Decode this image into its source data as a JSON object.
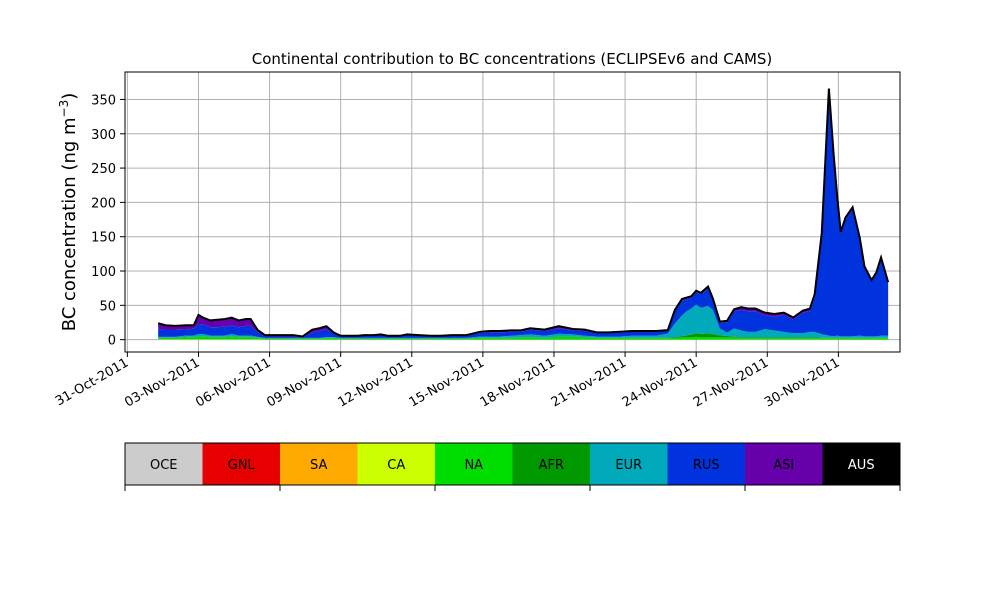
{
  "chart_data": {
    "type": "area",
    "title": "Continental contribution to BC concentrations (ECLIPSEv6 and CAMS)",
    "ylabel": "BC concentration (ng m",
    "ylabel_superscript": "−3",
    "ylabel_close": ")",
    "xlabel": "",
    "ylim": [
      -18,
      390
    ],
    "yticks": [
      0,
      50,
      100,
      150,
      200,
      250,
      300,
      350
    ],
    "xlim_days": [
      -0.1,
      32.6
    ],
    "xticks": [
      {
        "day": 0,
        "label": "31-Oct-2011"
      },
      {
        "day": 3,
        "label": "03-Nov-2011"
      },
      {
        "day": 6,
        "label": "06-Nov-2011"
      },
      {
        "day": 9,
        "label": "09-Nov-2011"
      },
      {
        "day": 12,
        "label": "12-Nov-2011"
      },
      {
        "day": 15,
        "label": "15-Nov-2011"
      },
      {
        "day": 18,
        "label": "18-Nov-2011"
      },
      {
        "day": 21,
        "label": "21-Nov-2011"
      },
      {
        "day": 24,
        "label": "24-Nov-2011"
      },
      {
        "day": 27,
        "label": "27-Nov-2011"
      },
      {
        "day": 30,
        "label": "30-Nov-2011"
      }
    ],
    "grid": true,
    "x_days": [
      1.3,
      1.6,
      2.0,
      2.5,
      2.8,
      3.0,
      3.2,
      3.5,
      3.8,
      4.1,
      4.4,
      4.7,
      5.0,
      5.2,
      5.5,
      5.8,
      6.2,
      6.6,
      7.0,
      7.4,
      7.8,
      8.1,
      8.4,
      8.7,
      9.0,
      9.4,
      9.7,
      10.0,
      10.4,
      10.7,
      11.0,
      11.5,
      11.8,
      12.3,
      12.8,
      13.2,
      13.7,
      14.3,
      14.9,
      15.3,
      15.7,
      16.2,
      16.6,
      17.0,
      17.6,
      18.2,
      18.8,
      19.3,
      19.8,
      20.3,
      20.8,
      21.3,
      21.8,
      22.3,
      22.8,
      23.1,
      23.4,
      23.6,
      23.8,
      24.0,
      24.2,
      24.5,
      24.7,
      25.0,
      25.3,
      25.6,
      25.9,
      26.2,
      26.5,
      26.9,
      27.3,
      27.7,
      28.1,
      28.5,
      28.8,
      29.0,
      29.3,
      29.6,
      29.8,
      29.95,
      30.1,
      30.3,
      30.6,
      30.9,
      31.1,
      31.4,
      31.6,
      31.8,
      32.1
    ],
    "series": [
      {
        "name": "OCE",
        "color": "#cccccc",
        "values": [
          0,
          0,
          0,
          0,
          0,
          0,
          0,
          0,
          0,
          0,
          0,
          0,
          0,
          0,
          0,
          0,
          0,
          0,
          0,
          0,
          0,
          0,
          0,
          0,
          0,
          0,
          0,
          0,
          0,
          0,
          0,
          0,
          0,
          0,
          0,
          0,
          0,
          0,
          0,
          0,
          0,
          0,
          0,
          0,
          0,
          0,
          0,
          0,
          0,
          0,
          0,
          0,
          0,
          0,
          0,
          0,
          0,
          0,
          0,
          0,
          0,
          0,
          0,
          0,
          0,
          0,
          0,
          0,
          0,
          0,
          0,
          0,
          0,
          0,
          0,
          0,
          0,
          0,
          0,
          0,
          0,
          0,
          0,
          0,
          0,
          0,
          0,
          0,
          0
        ]
      },
      {
        "name": "GNL",
        "color": "#e60000",
        "values": [
          0,
          0,
          0,
          0,
          0,
          0,
          0,
          0,
          0,
          0,
          0,
          0,
          0,
          0,
          0,
          0,
          0,
          0,
          0,
          0,
          0,
          0,
          0,
          0,
          0,
          0,
          0,
          0,
          0,
          0,
          0,
          0,
          0,
          0,
          0,
          0,
          0,
          0,
          0,
          0,
          0,
          0,
          0,
          0,
          0,
          0,
          0,
          0,
          0,
          0,
          0,
          0,
          0,
          0,
          0,
          0,
          0,
          0,
          0,
          0,
          0,
          0,
          0,
          0,
          0,
          0,
          0,
          0,
          0,
          0,
          0,
          0,
          0,
          0,
          0,
          0,
          0,
          0,
          0,
          0,
          0,
          0,
          0,
          0,
          0,
          0,
          0,
          0,
          0
        ]
      },
      {
        "name": "SA",
        "color": "#ffaa00",
        "values": [
          0,
          0,
          0,
          0,
          0,
          0,
          0,
          0,
          0,
          0,
          0,
          0,
          0,
          0,
          0,
          0,
          0,
          0,
          0,
          0,
          0,
          0,
          0,
          0,
          0,
          0,
          0,
          0,
          0,
          0,
          0,
          0,
          0,
          0,
          0,
          0,
          0,
          0,
          0,
          0,
          0,
          0,
          0,
          0,
          0,
          0,
          0,
          0,
          0,
          0,
          0,
          0,
          0,
          0,
          0,
          0,
          0,
          0,
          0,
          0,
          0,
          0,
          0,
          0,
          0,
          0,
          0,
          0,
          0,
          0,
          0,
          0,
          0,
          0,
          0,
          0,
          0,
          0,
          0,
          0,
          0,
          0,
          0,
          0,
          0,
          0,
          0,
          0,
          0
        ]
      },
      {
        "name": "CA",
        "color": "#ccff00",
        "values": [
          0.5,
          0.5,
          0.5,
          0.5,
          0.5,
          0.5,
          0.5,
          0.5,
          0.5,
          0.5,
          0.5,
          0.5,
          0.5,
          0.5,
          0.5,
          0.3,
          0.3,
          0.3,
          0.3,
          0.3,
          0.3,
          0.3,
          0.3,
          0.3,
          0.3,
          0.3,
          0.3,
          0.3,
          0.3,
          0.3,
          0.3,
          0.3,
          0.3,
          0.3,
          0.3,
          0.3,
          0.3,
          0.3,
          0.3,
          0.3,
          0.3,
          0.3,
          0.3,
          0.3,
          0.3,
          0.3,
          0.3,
          0.3,
          0.3,
          0.3,
          0.3,
          0.3,
          0.3,
          0.3,
          0.3,
          0.3,
          0.3,
          0.3,
          0.3,
          0.3,
          0.3,
          0.3,
          0.3,
          0.3,
          0.3,
          0.3,
          0.3,
          0.3,
          0.3,
          0.3,
          0.3,
          0.3,
          0.3,
          0.3,
          0.3,
          0.3,
          0.3,
          0.3,
          0.3,
          0.3,
          0.3,
          0.3,
          0.3,
          0.3,
          0.3,
          0.3,
          0.3,
          0.3,
          0.3
        ]
      },
      {
        "name": "NA",
        "color": "#00dd00",
        "values": [
          2,
          2,
          2,
          3,
          3,
          4,
          4,
          3,
          3,
          3,
          4,
          3,
          3,
          3,
          2,
          1,
          1,
          1,
          1,
          1,
          1,
          1,
          2,
          2,
          1,
          1,
          1,
          1,
          1,
          1,
          1,
          1,
          1,
          1,
          1,
          1,
          1,
          1,
          2,
          2,
          2,
          2,
          3,
          3,
          2,
          4,
          4,
          3,
          2,
          2,
          2,
          2,
          2,
          2,
          2,
          2,
          3,
          3,
          3,
          4,
          3,
          3,
          3,
          3,
          3,
          3,
          2,
          2,
          2,
          2,
          2,
          2,
          2,
          2,
          2,
          2,
          2,
          2,
          2,
          2,
          2,
          2,
          2,
          2,
          2,
          2,
          2,
          2,
          2
        ]
      },
      {
        "name": "AFR",
        "color": "#009900",
        "values": [
          0.5,
          0.5,
          0.5,
          0.5,
          0.5,
          0.5,
          0.5,
          0.5,
          0.5,
          0.5,
          0.5,
          0.5,
          0.5,
          0.5,
          0.5,
          0.3,
          0.3,
          0.3,
          0.3,
          0.3,
          0.3,
          0.3,
          0.3,
          0.3,
          0.3,
          0.3,
          0.3,
          0.3,
          0.3,
          0.3,
          0.3,
          0.3,
          0.3,
          0.3,
          0.3,
          0.3,
          0.3,
          0.3,
          0.3,
          0.3,
          0.3,
          0.3,
          0.3,
          0.3,
          0.3,
          0.3,
          0.3,
          0.3,
          0.3,
          0.3,
          0.3,
          0.3,
          0.3,
          0.3,
          0.5,
          1,
          2,
          3,
          4,
          5,
          5,
          6,
          5,
          3,
          2,
          1,
          1,
          1,
          1,
          1,
          1,
          1,
          1,
          1,
          1,
          1,
          0.5,
          0.5,
          0.5,
          0.5,
          0.5,
          0.5,
          0.5,
          0.5,
          0.5,
          0.5,
          0.5,
          0.5,
          0.5
        ]
      },
      {
        "name": "EUR",
        "color": "#00aabb",
        "values": [
          1,
          1,
          1,
          2,
          2,
          3,
          3,
          2,
          2,
          2,
          3,
          2,
          2,
          2,
          1,
          1,
          1,
          1,
          1,
          1,
          1,
          1,
          1,
          1,
          1,
          1,
          1,
          1,
          1,
          1,
          1,
          1,
          1,
          1,
          1,
          1,
          1,
          1,
          2,
          2,
          2,
          3,
          3,
          4,
          3,
          4,
          3,
          2,
          2,
          2,
          2,
          3,
          3,
          3,
          6,
          20,
          30,
          35,
          38,
          42,
          38,
          40,
          35,
          10,
          5,
          12,
          10,
          8,
          8,
          12,
          10,
          8,
          6,
          6,
          8,
          8,
          5,
          3,
          2,
          3,
          2,
          2,
          2,
          3,
          2,
          2,
          2,
          3,
          3
        ]
      },
      {
        "name": "RUS",
        "color": "#0033dd",
        "values": [
          12,
          10,
          10,
          9,
          10,
          15,
          14,
          12,
          12,
          13,
          13,
          12,
          14,
          14,
          7,
          2,
          2,
          2,
          2,
          1,
          8,
          10,
          12,
          6,
          2,
          2,
          2,
          3,
          3,
          4,
          2,
          2,
          4,
          3,
          2,
          2,
          3,
          3,
          5,
          6,
          6,
          6,
          5,
          7,
          7,
          8,
          6,
          7,
          5,
          5,
          6,
          6,
          6,
          6,
          4,
          18,
          22,
          18,
          16,
          18,
          20,
          25,
          14,
          8,
          15,
          25,
          30,
          30,
          30,
          20,
          20,
          25,
          20,
          30,
          30,
          50,
          145,
          340,
          255,
          200,
          150,
          170,
          185,
          140,
          100,
          80,
          90,
          110,
          75
        ]
      },
      {
        "name": "ASI",
        "color": "#6600aa",
        "values": [
          8,
          7,
          6,
          6,
          5,
          13,
          10,
          10,
          11,
          11,
          11,
          10,
          10,
          10,
          3,
          2,
          2,
          2,
          2,
          1,
          4,
          4,
          4,
          1,
          1,
          1,
          1,
          1,
          1,
          1,
          1,
          1,
          1,
          1,
          1,
          1,
          1,
          1,
          2,
          2,
          2,
          2,
          2,
          2,
          2,
          3,
          2,
          2,
          1,
          1,
          1,
          1,
          1,
          1,
          1,
          2,
          2,
          2,
          2,
          2,
          2,
          3,
          3,
          2,
          2,
          3,
          4,
          4,
          4,
          4,
          4,
          3,
          3,
          3,
          4,
          5,
          3,
          20,
          10,
          3,
          2,
          3,
          3,
          3,
          2,
          2,
          3,
          4,
          3
        ]
      },
      {
        "name": "AUS",
        "color": "#000000",
        "values": [
          0,
          0,
          0,
          0,
          0,
          0,
          0,
          0,
          0,
          0,
          0,
          0,
          0,
          0,
          0,
          0,
          0,
          0,
          0,
          0,
          0,
          0,
          0,
          0,
          0,
          0,
          0,
          0,
          0,
          0,
          0,
          0,
          0,
          0,
          0,
          0,
          0,
          0,
          0,
          0,
          0,
          0,
          0,
          0,
          0,
          0,
          0,
          0,
          0,
          0,
          0,
          0,
          0,
          0,
          0,
          0,
          0,
          0,
          0,
          0,
          0,
          0,
          0,
          0,
          0,
          0,
          0,
          0,
          0,
          0,
          0,
          0,
          0,
          0,
          0,
          0,
          0,
          0,
          0,
          0,
          0,
          0,
          0,
          0,
          0,
          0,
          0,
          0,
          0
        ]
      }
    ],
    "legend": [
      {
        "label": "OCE",
        "color": "#cccccc",
        "text_color": "#000000"
      },
      {
        "label": "GNL",
        "color": "#e60000",
        "text_color": "#000000"
      },
      {
        "label": "SA",
        "color": "#ffaa00",
        "text_color": "#000000"
      },
      {
        "label": "CA",
        "color": "#ccff00",
        "text_color": "#000000"
      },
      {
        "label": "NA",
        "color": "#00dd00",
        "text_color": "#000000"
      },
      {
        "label": "AFR",
        "color": "#009900",
        "text_color": "#000000"
      },
      {
        "label": "EUR",
        "color": "#00aabb",
        "text_color": "#000000"
      },
      {
        "label": "RUS",
        "color": "#0033dd",
        "text_color": "#000000"
      },
      {
        "label": "ASI",
        "color": "#6600aa",
        "text_color": "#000000"
      },
      {
        "label": "AUS",
        "color": "#000000",
        "text_color": "#ffffff"
      }
    ]
  }
}
